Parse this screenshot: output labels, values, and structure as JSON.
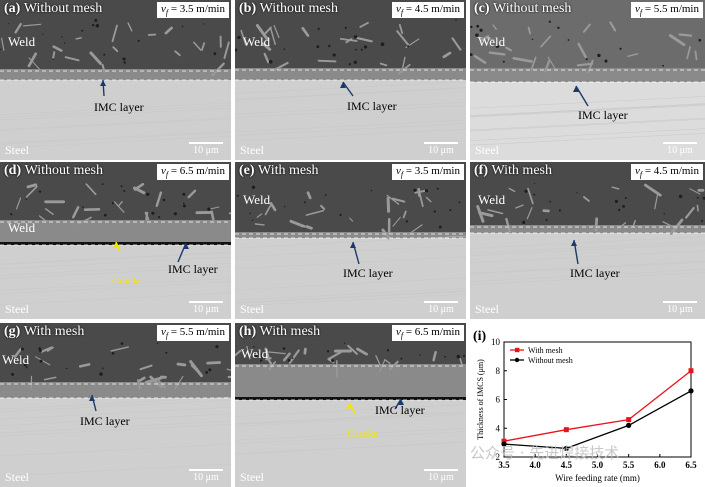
{
  "panels": [
    {
      "id": "a",
      "letter": "(a)",
      "condition": "Without mesh",
      "speed_symbol": "v",
      "speed_sub": "f",
      "speed_value": "= 3.5 m/min",
      "weld": "Weld",
      "imc": "IMC layer",
      "cracks": "",
      "steel": "Steel",
      "scale": "10 μm"
    },
    {
      "id": "b",
      "letter": "(b)",
      "condition": "Without mesh",
      "speed_symbol": "v",
      "speed_sub": "f",
      "speed_value": "= 4.5 m/min",
      "weld": "Weld",
      "imc": "IMC layer",
      "cracks": "",
      "steel": "Steel",
      "scale": "10 μm"
    },
    {
      "id": "c",
      "letter": "(c)",
      "condition": "Without mesh",
      "speed_symbol": "v",
      "speed_sub": "f",
      "speed_value": "= 5.5 m/min",
      "weld": "Weld",
      "imc": "IMC layer",
      "cracks": "",
      "steel": "Steel",
      "scale": "10 μm"
    },
    {
      "id": "d",
      "letter": "(d)",
      "condition": "Without mesh",
      "speed_symbol": "v",
      "speed_sub": "f",
      "speed_value": "= 6.5 m/min",
      "weld": "Weld",
      "imc": "IMC layer",
      "cracks": "Cracks",
      "steel": "Steel",
      "scale": "10 μm"
    },
    {
      "id": "e",
      "letter": "(e)",
      "condition": "With mesh",
      "speed_symbol": "v",
      "speed_sub": "f",
      "speed_value": "= 3.5 m/min",
      "weld": "Weld",
      "imc": "IMC layer",
      "cracks": "",
      "steel": "Steel",
      "scale": "10 μm"
    },
    {
      "id": "f",
      "letter": "(f)",
      "condition": "With mesh",
      "speed_symbol": "v",
      "speed_sub": "f",
      "speed_value": "= 4.5 m/min",
      "weld": "Weld",
      "imc": "IMC layer",
      "cracks": "",
      "steel": "Steel",
      "scale": "10 μm"
    },
    {
      "id": "g",
      "letter": "(g)",
      "condition": "With mesh",
      "speed_symbol": "v",
      "speed_sub": "f",
      "speed_value": "= 5.5 m/min",
      "weld": "Weld",
      "imc": "IMC layer",
      "cracks": "",
      "steel": "Steel",
      "scale": "10 μm"
    },
    {
      "id": "h",
      "letter": "(h)",
      "condition": "With mesh",
      "speed_symbol": "v",
      "speed_sub": "f",
      "speed_value": "= 6.5 m/min",
      "weld": "Weld",
      "imc": "IMC layer",
      "cracks": "Cracks",
      "steel": "Steel",
      "scale": "10 μm"
    }
  ],
  "chart_panel_letter": "(i)",
  "chart_data": {
    "type": "line",
    "x": [
      3.5,
      4.5,
      5.5,
      6.5
    ],
    "xticks": [
      "3.5",
      "4.0",
      "4.5",
      "5.0",
      "5.5",
      "6.0",
      "6.5"
    ],
    "xlim": [
      3.5,
      6.5
    ],
    "ylim": [
      2,
      10
    ],
    "yticks": [
      "2",
      "4",
      "6",
      "8",
      "10"
    ],
    "xlabel": "Wire feeding rate (mm)",
    "ylabel": "Thickness of IMCS (μm)",
    "legend_position": "top-left",
    "series": [
      {
        "name": "With mesh",
        "color": "#e8141c",
        "marker": "square",
        "values": [
          3.1,
          3.9,
          4.6,
          8.0
        ]
      },
      {
        "name": "Without mesh",
        "color": "#000000",
        "marker": "circle",
        "values": [
          2.9,
          2.6,
          4.2,
          6.6
        ]
      }
    ]
  },
  "watermark": "公众号 · 先进焊接技术"
}
